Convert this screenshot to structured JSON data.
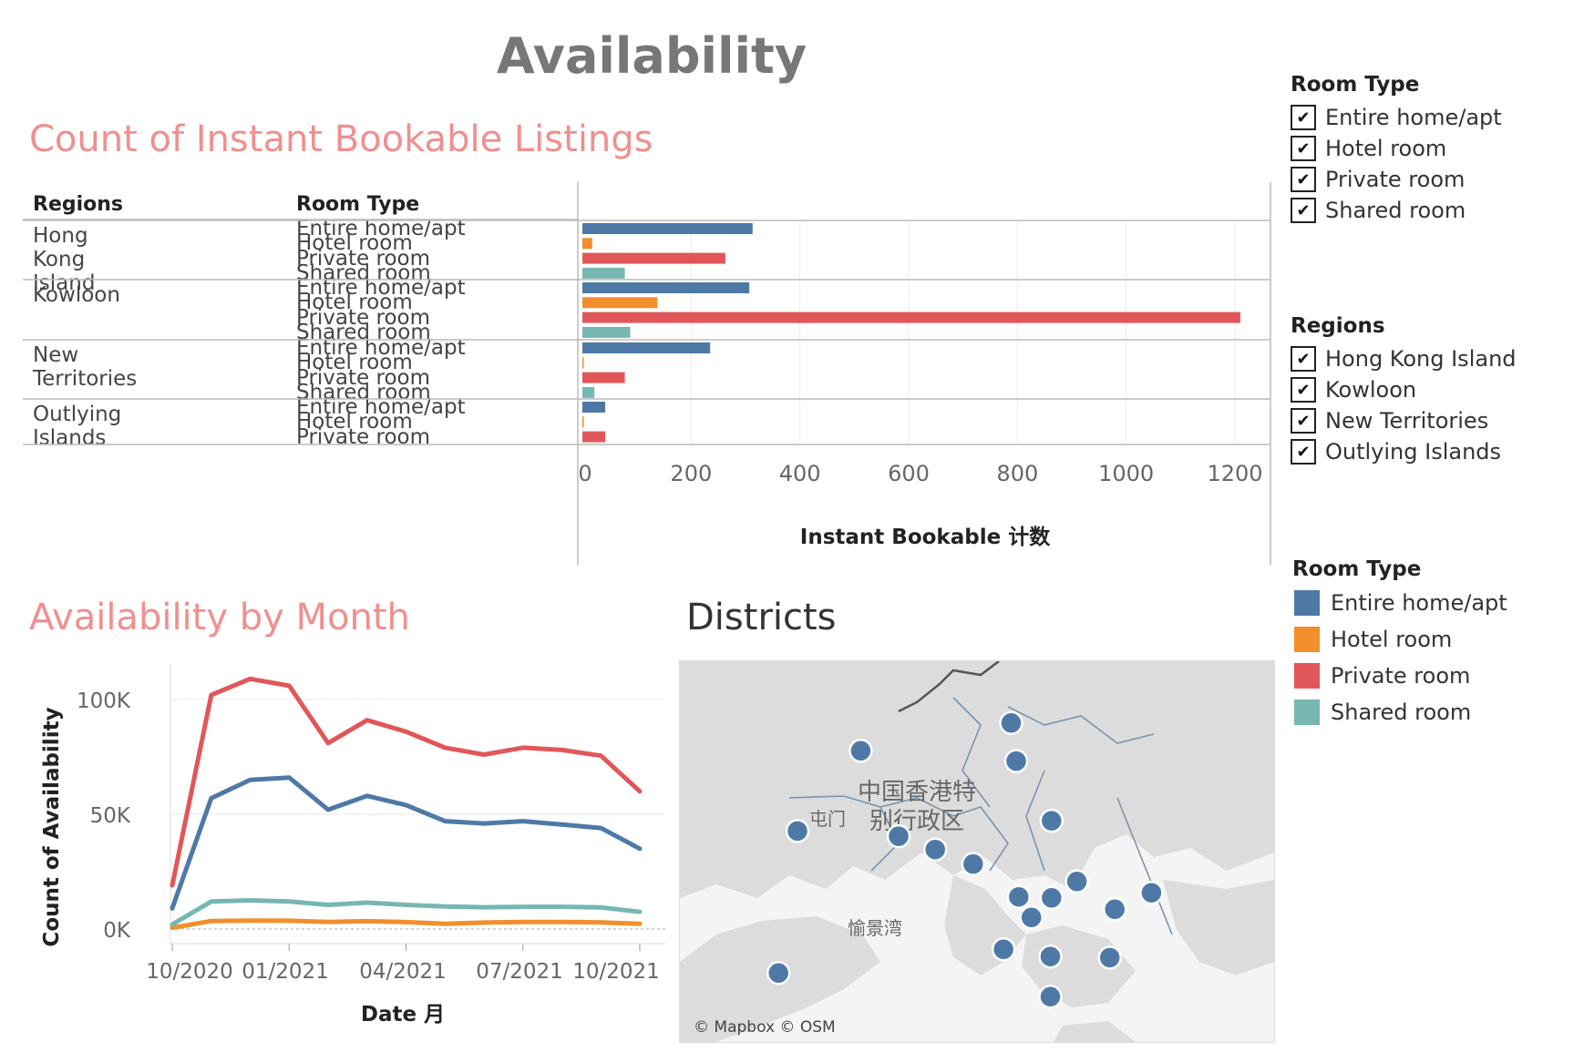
{
  "dashboard": {
    "title": "Availability"
  },
  "sections": {
    "bar_title": "Count of Instant Bookable Listings",
    "line_title": "Availability by Month",
    "map_title": "Districts"
  },
  "bar_table": {
    "regions_header": "Regions",
    "room_type_header": "Room Type"
  },
  "colors": {
    "Entire home/apt": "#4e79a7",
    "Hotel room": "#f28e2b",
    "Private room": "#e15759",
    "Shared room": "#76b7b2",
    "title_pink": "#f08f8f"
  },
  "chart_data": [
    {
      "type": "bar",
      "orientation": "horizontal",
      "title": "Count of Instant Bookable Listings",
      "xlabel": "Instant Bookable 计数",
      "xlim": [
        0,
        1250
      ],
      "xticks": [
        "0",
        "200",
        "400",
        "600",
        "800",
        "1000",
        "1200"
      ],
      "groups": [
        {
          "region": "Hong Kong Island",
          "rows": [
            {
              "room_type": "Entire home/apt",
              "value": 313
            },
            {
              "room_type": "Hotel room",
              "value": 18
            },
            {
              "room_type": "Private room",
              "value": 263
            },
            {
              "room_type": "Shared room",
              "value": 78
            }
          ]
        },
        {
          "region": "Kowloon",
          "rows": [
            {
              "room_type": "Entire home/apt",
              "value": 307
            },
            {
              "room_type": "Hotel room",
              "value": 138
            },
            {
              "room_type": "Private room",
              "value": 1210
            },
            {
              "room_type": "Shared room",
              "value": 88
            }
          ]
        },
        {
          "region": "New Territories",
          "rows": [
            {
              "room_type": "Entire home/apt",
              "value": 235
            },
            {
              "room_type": "Hotel room",
              "value": 2
            },
            {
              "room_type": "Private room",
              "value": 78
            },
            {
              "room_type": "Shared room",
              "value": 22
            }
          ]
        },
        {
          "region": "Outlying Islands",
          "rows": [
            {
              "room_type": "Entire home/apt",
              "value": 42
            },
            {
              "room_type": "Hotel room",
              "value": 2
            },
            {
              "room_type": "Private room",
              "value": 42
            }
          ]
        }
      ]
    },
    {
      "type": "line",
      "title": "Availability by Month",
      "xlabel": "Date 月",
      "ylabel": "Count of Availability",
      "x": [
        "2020-10",
        "2020-11",
        "2020-12",
        "2021-01",
        "2021-02",
        "2021-03",
        "2021-04",
        "2021-05",
        "2021-06",
        "2021-07",
        "2021-08",
        "2021-09",
        "2021-10"
      ],
      "xticks": [
        "10/2020",
        "01/2021",
        "04/2021",
        "07/2021",
        "10/2021"
      ],
      "yticks": [
        "0K",
        "50K",
        "100K"
      ],
      "ylim": [
        0,
        110000
      ],
      "grid": true,
      "series": [
        {
          "name": "Entire home/apt",
          "values": [
            9000,
            57000,
            65000,
            66000,
            52000,
            58000,
            54000,
            47000,
            46000,
            47000,
            45500,
            44000,
            35000
          ]
        },
        {
          "name": "Hotel room",
          "values": [
            500,
            3500,
            3700,
            3600,
            3100,
            3400,
            3000,
            2300,
            2800,
            3100,
            3100,
            2900,
            2300
          ]
        },
        {
          "name": "Private room",
          "values": [
            19000,
            102000,
            109000,
            106000,
            81000,
            91000,
            86000,
            79000,
            76000,
            79000,
            78000,
            75500,
            60000
          ]
        },
        {
          "name": "Shared room",
          "values": [
            2000,
            12000,
            12500,
            12000,
            10500,
            11500,
            10500,
            9800,
            9500,
            9700,
            9700,
            9400,
            7500
          ]
        }
      ]
    }
  ],
  "map": {
    "labels": [
      "中国香港特",
      "别行政区",
      "屯门",
      "愉景湾"
    ],
    "attribution": "© Mapbox © OSM",
    "point_color": "#4e79a7",
    "points": [
      {
        "lon": 114.142,
        "lat": 22.5
      },
      {
        "lon": 114.023,
        "lat": 22.473
      },
      {
        "lon": 114.146,
        "lat": 22.463
      },
      {
        "lon": 113.973,
        "lat": 22.395
      },
      {
        "lon": 114.053,
        "lat": 22.39
      },
      {
        "lon": 114.174,
        "lat": 22.405
      },
      {
        "lon": 114.082,
        "lat": 22.377
      },
      {
        "lon": 114.112,
        "lat": 22.363
      },
      {
        "lon": 114.194,
        "lat": 22.346
      },
      {
        "lon": 114.253,
        "lat": 22.335
      },
      {
        "lon": 114.148,
        "lat": 22.331
      },
      {
        "lon": 114.174,
        "lat": 22.33
      },
      {
        "lon": 114.224,
        "lat": 22.319
      },
      {
        "lon": 114.158,
        "lat": 22.311
      },
      {
        "lon": 114.136,
        "lat": 22.28
      },
      {
        "lon": 114.173,
        "lat": 22.273
      },
      {
        "lon": 114.22,
        "lat": 22.272
      },
      {
        "lon": 113.958,
        "lat": 22.257
      },
      {
        "lon": 114.173,
        "lat": 22.234
      }
    ]
  },
  "filters": {
    "room_type": {
      "title": "Room Type",
      "items": [
        "Entire home/apt",
        "Hotel room",
        "Private room",
        "Shared room"
      ]
    },
    "regions": {
      "title": "Regions",
      "items": [
        "Hong Kong Island",
        "Kowloon",
        "New Territories",
        "Outlying Islands"
      ]
    }
  },
  "color_legend": {
    "title": "Room Type",
    "items": [
      "Entire home/apt",
      "Hotel room",
      "Private room",
      "Shared room"
    ]
  }
}
